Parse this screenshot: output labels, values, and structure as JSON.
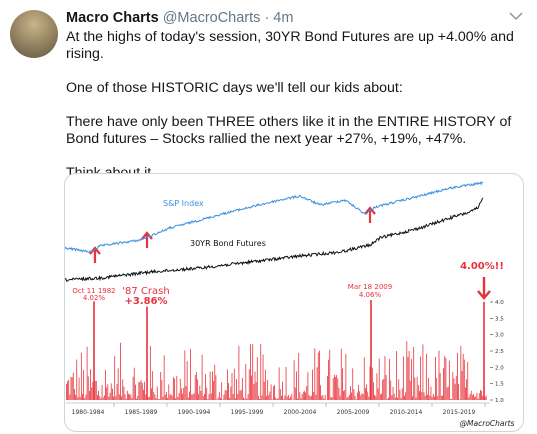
{
  "tweet": {
    "name": "Macro Charts",
    "handle": "@MacroCharts",
    "time": "· 4m",
    "paragraphs": [
      "At the highs of today's session, 30YR Bond Futures are up +4.00% and rising.",
      "One of those HISTORIC days we'll tell our kids about:",
      "There have only been THREE others like it in the ENTIRE HISTORY of Bond futures – Stocks rallied the next year +27%, +19%, +47%.",
      "Think about it."
    ],
    "image": {
      "series_labels": [
        "S&P Index",
        "30YR Bond Futures"
      ],
      "annotations": [
        {
          "title": "Oct 11 1982",
          "value": 4.02,
          "value_label": "4.02%"
        },
        {
          "title": "'87 Crash",
          "value": 3.86,
          "value_label": "+3.86%"
        },
        {
          "title": "Mar 18 2009",
          "value": 4.06,
          "value_label": "4.06%"
        },
        {
          "title": "",
          "value": 4.0,
          "value_label": "4.00%!!"
        }
      ],
      "yticks": [
        {
          "value": 4,
          "label": "4.0"
        },
        3.5,
        {
          "value": 3,
          "label": "3.0"
        },
        2.5,
        {
          "value": 2,
          "label": "2.0"
        },
        1.5,
        {
          "value": 1,
          "label": "1.0"
        }
      ],
      "ylim": [
        1,
        4
      ],
      "xlabels": [
        "1980-1984",
        "1985-1989",
        "1990-1994",
        "1995-1999",
        "2000-2004",
        "2005-2009",
        "2010-2014",
        "2015-2019"
      ],
      "credit": "@MacroCharts"
    }
  }
}
